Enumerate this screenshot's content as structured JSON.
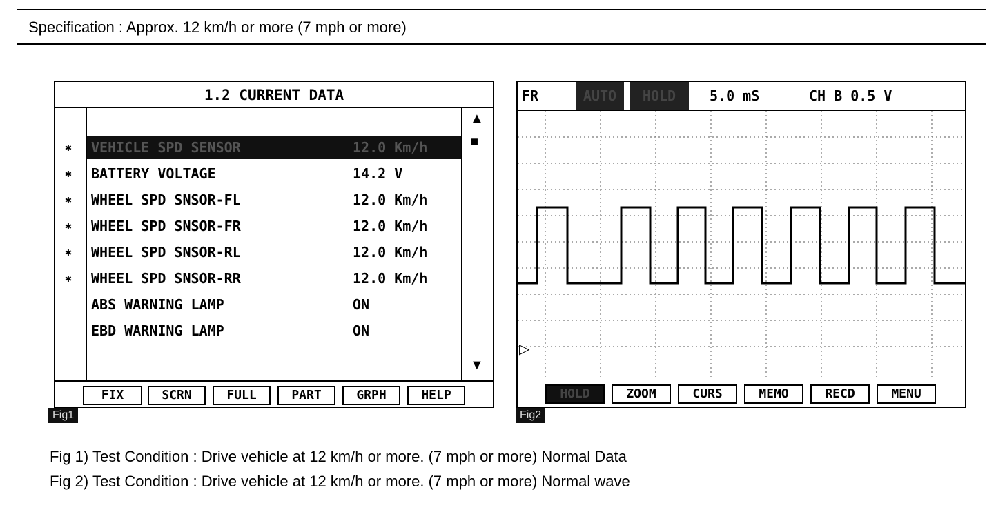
{
  "specification": "Specification :  Approx.  12 km/h or more (7 mph or more)",
  "fig1": {
    "title": "1.2 CURRENT DATA",
    "rows": [
      {
        "name": "VEHICLE SPD SENSOR",
        "value": "12.0 Km/h",
        "marked": true,
        "selected": true
      },
      {
        "name": "BATTERY VOLTAGE",
        "value": "14.2 V",
        "marked": true,
        "selected": false
      },
      {
        "name": "WHEEL SPD SNSOR-FL",
        "value": "12.0 Km/h",
        "marked": true,
        "selected": false
      },
      {
        "name": "WHEEL SPD SNSOR-FR",
        "value": "12.0 Km/h",
        "marked": true,
        "selected": false
      },
      {
        "name": "WHEEL SPD SNSOR-RL",
        "value": "12.0 Km/h",
        "marked": true,
        "selected": false
      },
      {
        "name": "WHEEL SPD SNSOR-RR",
        "value": "12.0 Km/h",
        "marked": true,
        "selected": false
      },
      {
        "name": "ABS WARNING LAMP",
        "value": "ON",
        "marked": false,
        "selected": false
      },
      {
        "name": "EBD WARNING LAMP",
        "value": "ON",
        "marked": false,
        "selected": false
      }
    ],
    "mark_glyph": "✱",
    "scroll_up": "▲",
    "scroll_thumb": "■",
    "scroll_down": "▼",
    "buttons": [
      "FIX",
      "SCRN",
      "FULL",
      "PART",
      "GRPH",
      "HELP"
    ],
    "tag": "Fig1"
  },
  "fig2": {
    "channel": "FR",
    "mode1": "AUTO",
    "mode2": "HOLD",
    "timebase": "5.0 mS",
    "ch_scale": "CH B 0.5 V",
    "trigger_marker": "▷",
    "buttons": [
      "HOLD",
      "ZOOM",
      "CURS",
      "MEMO",
      "RECD",
      "MENU"
    ],
    "tag": "Fig2"
  },
  "captions": [
    "Fig 1)  Test Condition : Drive vehicle at 12 km/h or more. (7 mph or more) Normal Data",
    "Fig 2)  Test Condition : Drive vehicle at 12 km/h or more. (7 mph or more) Normal wave"
  ]
}
